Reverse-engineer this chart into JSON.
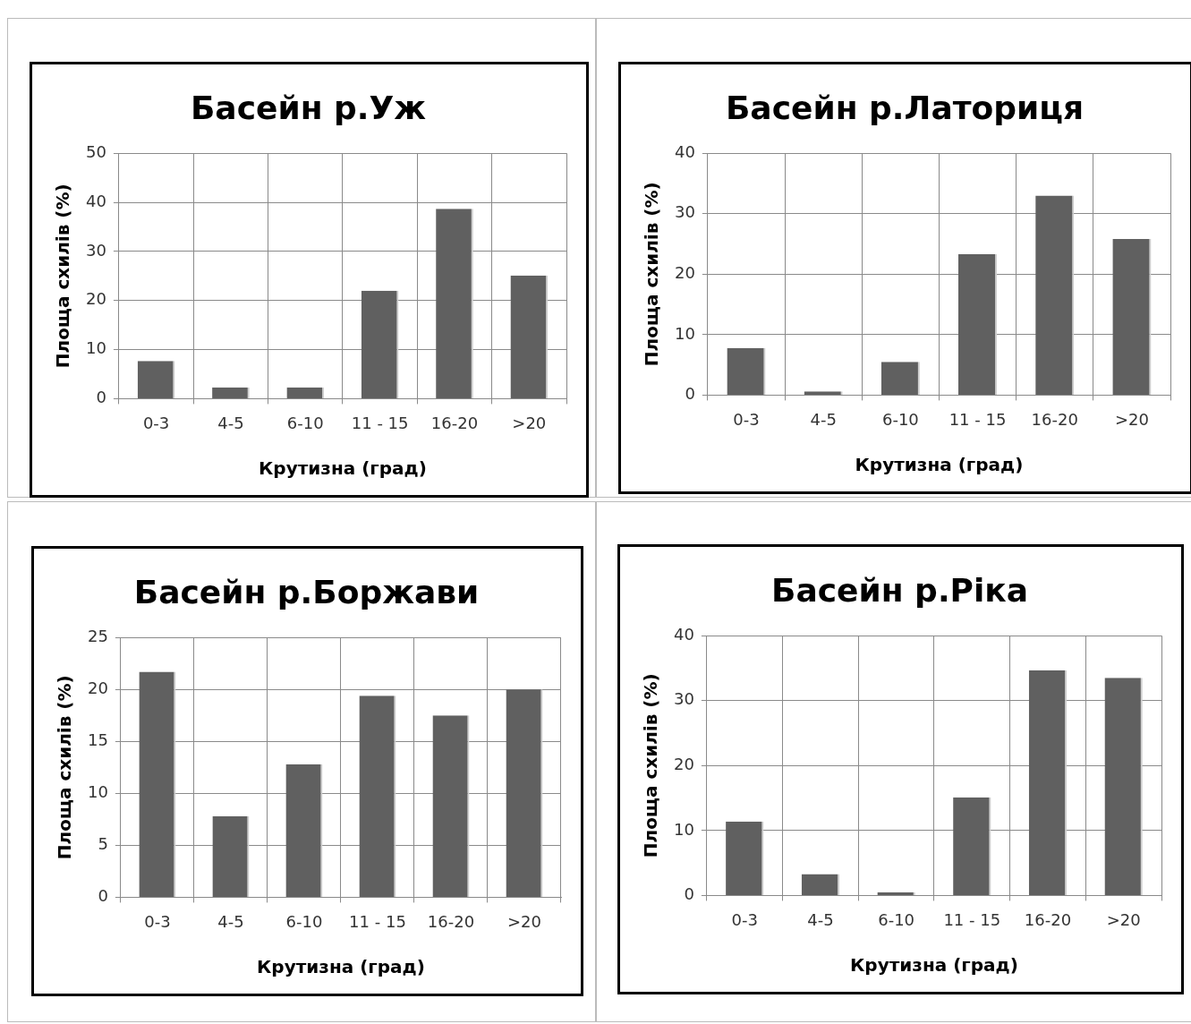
{
  "chart_data": [
    {
      "type": "bar",
      "title": "Басейн р.Уж",
      "xlabel": "Крутизна (град)",
      "ylabel": "Площа схилів (%)",
      "categories": [
        "0-3",
        "4-5",
        "6-10",
        "11 - 15",
        "16-20",
        ">20"
      ],
      "values": [
        7.7,
        2.3,
        2.3,
        22,
        38.7,
        25.1
      ],
      "color": "#606060",
      "ylim": [
        0,
        50
      ],
      "yticks": [
        0,
        10,
        20,
        30,
        40,
        50
      ],
      "grid": true
    },
    {
      "type": "bar",
      "title": "Басейн р.Латориця",
      "xlabel": "Крутизна (град)",
      "ylabel": "Площа схилів (%)",
      "categories": [
        "0-3",
        "4-5",
        "6-10",
        "11 - 15",
        "16-20",
        ">20"
      ],
      "values": [
        7.8,
        0.6,
        5.5,
        23.3,
        33,
        25.8
      ],
      "color": "#606060",
      "ylim": [
        0,
        40
      ],
      "yticks": [
        0,
        10,
        20,
        30,
        40
      ],
      "grid": true
    },
    {
      "type": "bar",
      "title": "Басейн р.Боржави",
      "xlabel": "Крутизна (град)",
      "ylabel": "Площа схилів (%)",
      "categories": [
        "0-3",
        "4-5",
        "6-10",
        "11 - 15",
        "16-20",
        ">20"
      ],
      "values": [
        21.7,
        7.8,
        12.8,
        19.4,
        17.5,
        20.0
      ],
      "color": "#606060",
      "ylim": [
        0,
        25
      ],
      "yticks": [
        0,
        5,
        10,
        15,
        20,
        25
      ],
      "grid": true
    },
    {
      "type": "bar",
      "title": "Басейн р.Ріка",
      "xlabel": "Крутизна (град)",
      "ylabel": "Площа схилів (%)",
      "categories": [
        "0-3",
        "4-5",
        "6-10",
        "11 - 15",
        "16-20",
        ">20"
      ],
      "values": [
        11.4,
        3.3,
        0.5,
        15.1,
        34.7,
        33.5
      ],
      "color": "#606060",
      "ylim": [
        0,
        40
      ],
      "yticks": [
        0,
        10,
        20,
        30,
        40
      ],
      "grid": true
    }
  ]
}
